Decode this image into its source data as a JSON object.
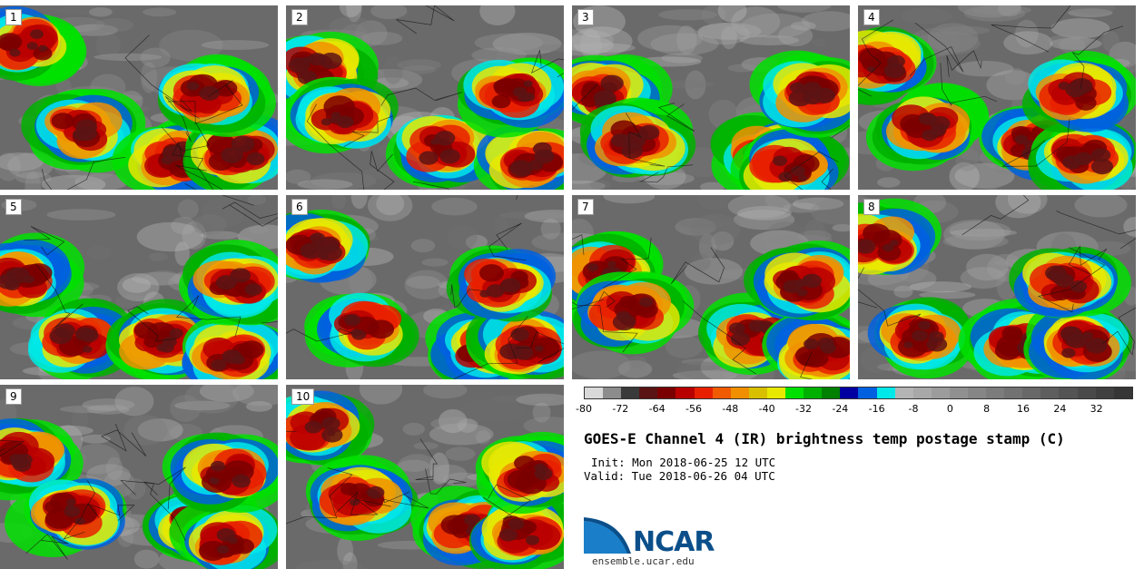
{
  "panels": [
    {
      "label": "1"
    },
    {
      "label": "2"
    },
    {
      "label": "3"
    },
    {
      "label": "4"
    },
    {
      "label": "5"
    },
    {
      "label": "6"
    },
    {
      "label": "7"
    },
    {
      "label": "8"
    },
    {
      "label": "9"
    },
    {
      "label": "10"
    }
  ],
  "colorbar": {
    "ticks": [
      "-80",
      "-72",
      "-64",
      "-56",
      "-48",
      "-40",
      "-32",
      "-24",
      "-16",
      "-8",
      "0",
      "8",
      "16",
      "24",
      "32"
    ],
    "min": -80,
    "max": 40,
    "step": 4,
    "colors": [
      "#d9d9d9",
      "#8c8c8c",
      "#3a3a3a",
      "#5a1414",
      "#7a0000",
      "#b80000",
      "#e82000",
      "#f05a00",
      "#f09000",
      "#d8c000",
      "#e8e800",
      "#00e000",
      "#00b000",
      "#008000",
      "#0000a0",
      "#0060e0",
      "#00e8e8",
      "#b4b4b4",
      "#a8a8a8",
      "#9c9c9c",
      "#909090",
      "#868686",
      "#7c7c7c",
      "#727272",
      "#686868",
      "#5e5e5e",
      "#545454",
      "#4a4a4a",
      "#404040",
      "#363636"
    ]
  },
  "title": "GOES-E Channel 4 (IR) brightness temp postage stamp (C)",
  "init": "Init: Mon 2018-06-25 12 UTC",
  "valid": "Valid: Tue 2018-06-26 04 UTC",
  "logo": {
    "text": "NCAR",
    "url": "ensemble.ucar.edu",
    "color": "#0b4f8a"
  }
}
